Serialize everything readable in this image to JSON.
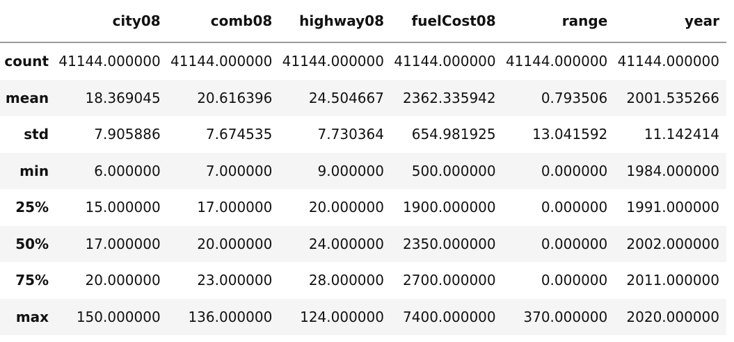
{
  "columns": [
    "city08",
    "comb08",
    "highway08",
    "fuelCost08",
    "range",
    "year"
  ],
  "rows": [
    {
      "label": "count",
      "values": [
        "41144.000000",
        "41144.000000",
        "41144.000000",
        "41144.000000",
        "41144.000000",
        "41144.000000"
      ]
    },
    {
      "label": "mean",
      "values": [
        "18.369045",
        "20.616396",
        "24.504667",
        "2362.335942",
        "0.793506",
        "2001.535266"
      ]
    },
    {
      "label": "std",
      "values": [
        "7.905886",
        "7.674535",
        "7.730364",
        "654.981925",
        "13.041592",
        "11.142414"
      ]
    },
    {
      "label": "min",
      "values": [
        "6.000000",
        "7.000000",
        "9.000000",
        "500.000000",
        "0.000000",
        "1984.000000"
      ]
    },
    {
      "label": "25%",
      "values": [
        "15.000000",
        "17.000000",
        "20.000000",
        "1900.000000",
        "0.000000",
        "1991.000000"
      ]
    },
    {
      "label": "50%",
      "values": [
        "17.000000",
        "20.000000",
        "24.000000",
        "2350.000000",
        "0.000000",
        "2002.000000"
      ]
    },
    {
      "label": "75%",
      "values": [
        "20.000000",
        "23.000000",
        "28.000000",
        "2700.000000",
        "0.000000",
        "2011.000000"
      ]
    },
    {
      "label": "max",
      "values": [
        "150.000000",
        "136.000000",
        "124.000000",
        "7400.000000",
        "370.000000",
        "2020.000000"
      ]
    }
  ],
  "colors": {
    "header_rule": "#9a9a9a",
    "stripe": "#f5f5f5"
  }
}
